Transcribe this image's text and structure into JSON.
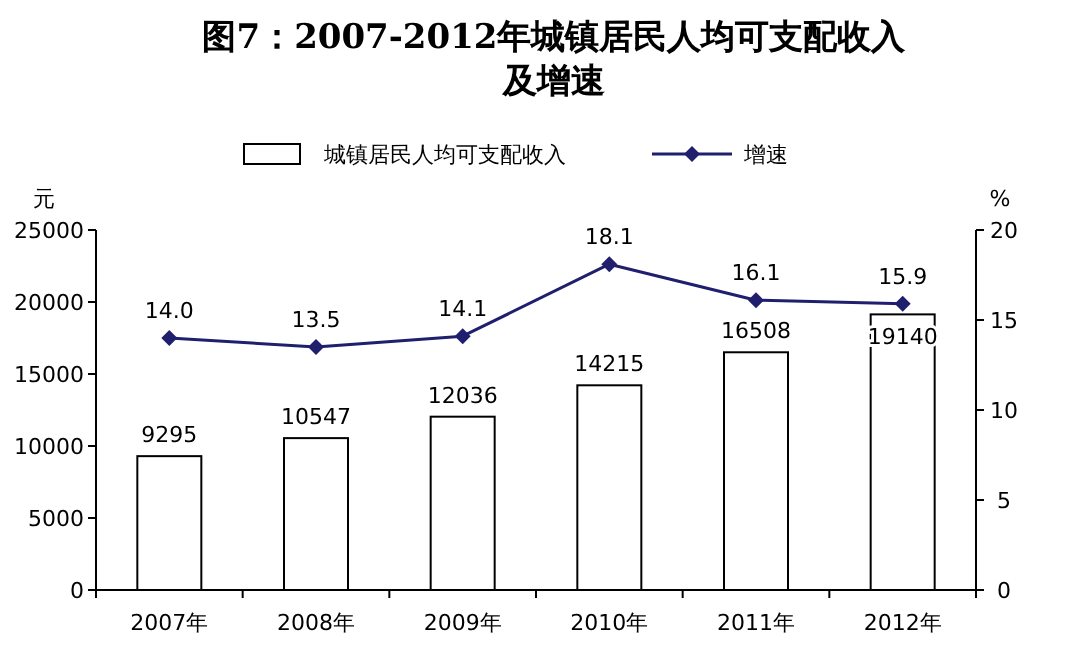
{
  "chart_data": {
    "type": "bar",
    "title": "图7：2007-2012年城镇居民人均可支配收入及增速",
    "categories": [
      "2007年",
      "2008年",
      "2009年",
      "2010年",
      "2011年",
      "2012年"
    ],
    "series": [
      {
        "name": "城镇居民人均可支配收入",
        "color": "#ffffff",
        "values": [
          9295,
          10547,
          12036,
          14215,
          16508,
          19140
        ],
        "value_labels": [
          "9295",
          "10547",
          "12036",
          "14215",
          "16508",
          "19140"
        ]
      },
      {
        "name": "增速",
        "type": "line",
        "axis": "y2",
        "color": "#1f1f6e",
        "marker": "diamond",
        "values": [
          14.0,
          13.5,
          14.1,
          18.1,
          16.1,
          15.9
        ],
        "value_labels": [
          "14.0",
          "13.5",
          "14.1",
          "18.1",
          "16.1",
          "15.9"
        ]
      }
    ],
    "ylabel": "元",
    "y2label": "%",
    "ylim": [
      0,
      25000
    ],
    "yticks": [
      0,
      5000,
      10000,
      15000,
      20000,
      25000
    ],
    "y2lim": [
      0,
      20
    ],
    "y2ticks": [
      0,
      5,
      10,
      15,
      20
    ],
    "grid": false,
    "legend": "top"
  }
}
